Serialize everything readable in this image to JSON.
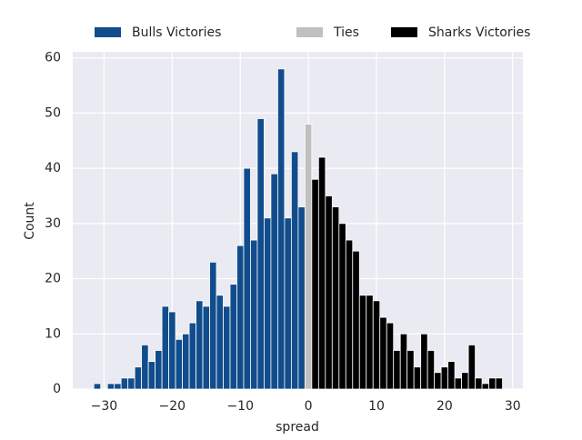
{
  "chart_data": {
    "type": "histogram",
    "xlabel": "spread",
    "ylabel": "Count",
    "xlim": [
      -34.6,
      31.5
    ],
    "ylim": [
      0,
      61.1
    ],
    "xticks": [
      {
        "value": -30,
        "label": "−30"
      },
      {
        "value": -20,
        "label": "−20"
      },
      {
        "value": -10,
        "label": "−10"
      },
      0,
      10,
      20,
      30
    ],
    "yticks": [
      0,
      10,
      20,
      30,
      40,
      50,
      60
    ],
    "grid": true,
    "legend": "top",
    "series": [
      {
        "name": "Bulls Victories",
        "color": "#114d8c",
        "bins": [
          -31.5,
          -30.5,
          -29.5,
          -28.5,
          -27.5,
          -26.5,
          -25.5,
          -24.5,
          -23.5,
          -22.5,
          -21.5,
          -20.5,
          -19.5,
          -18.5,
          -17.5,
          -16.5,
          -15.5,
          -14.5,
          -13.5,
          -12.5,
          -11.5,
          -10.5,
          -9.5,
          -8.5,
          -7.5,
          -6.5,
          -5.5,
          -4.5,
          -3.5,
          -2.5,
          -1.5,
          -0.5
        ],
        "values": [
          1,
          0,
          1,
          1,
          2,
          2,
          4,
          8,
          5,
          7,
          15,
          14,
          9,
          10,
          12,
          16,
          15,
          23,
          17,
          15,
          19,
          26,
          40,
          27,
          49,
          31,
          39,
          58,
          31,
          43,
          33
        ]
      },
      {
        "name": "Ties",
        "color": "#c0c0c0",
        "bins": [
          -0.5,
          0.5
        ],
        "values": [
          48
        ]
      },
      {
        "name": "Sharks Victories",
        "color": "#000000",
        "bins": [
          0.5,
          1.5,
          2.5,
          3.5,
          4.5,
          5.5,
          6.5,
          7.5,
          8.5,
          9.5,
          10.5,
          11.5,
          12.5,
          13.5,
          14.5,
          15.5,
          16.5,
          17.5,
          18.5,
          19.5,
          20.5,
          21.5,
          22.5,
          23.5,
          24.5,
          25.5,
          26.5,
          27.5,
          28.5
        ],
        "values": [
          38,
          42,
          35,
          33,
          30,
          27,
          25,
          17,
          17,
          16,
          13,
          12,
          7,
          10,
          7,
          4,
          10,
          7,
          3,
          4,
          5,
          2,
          3,
          8,
          2,
          1,
          2,
          2
        ]
      }
    ]
  }
}
